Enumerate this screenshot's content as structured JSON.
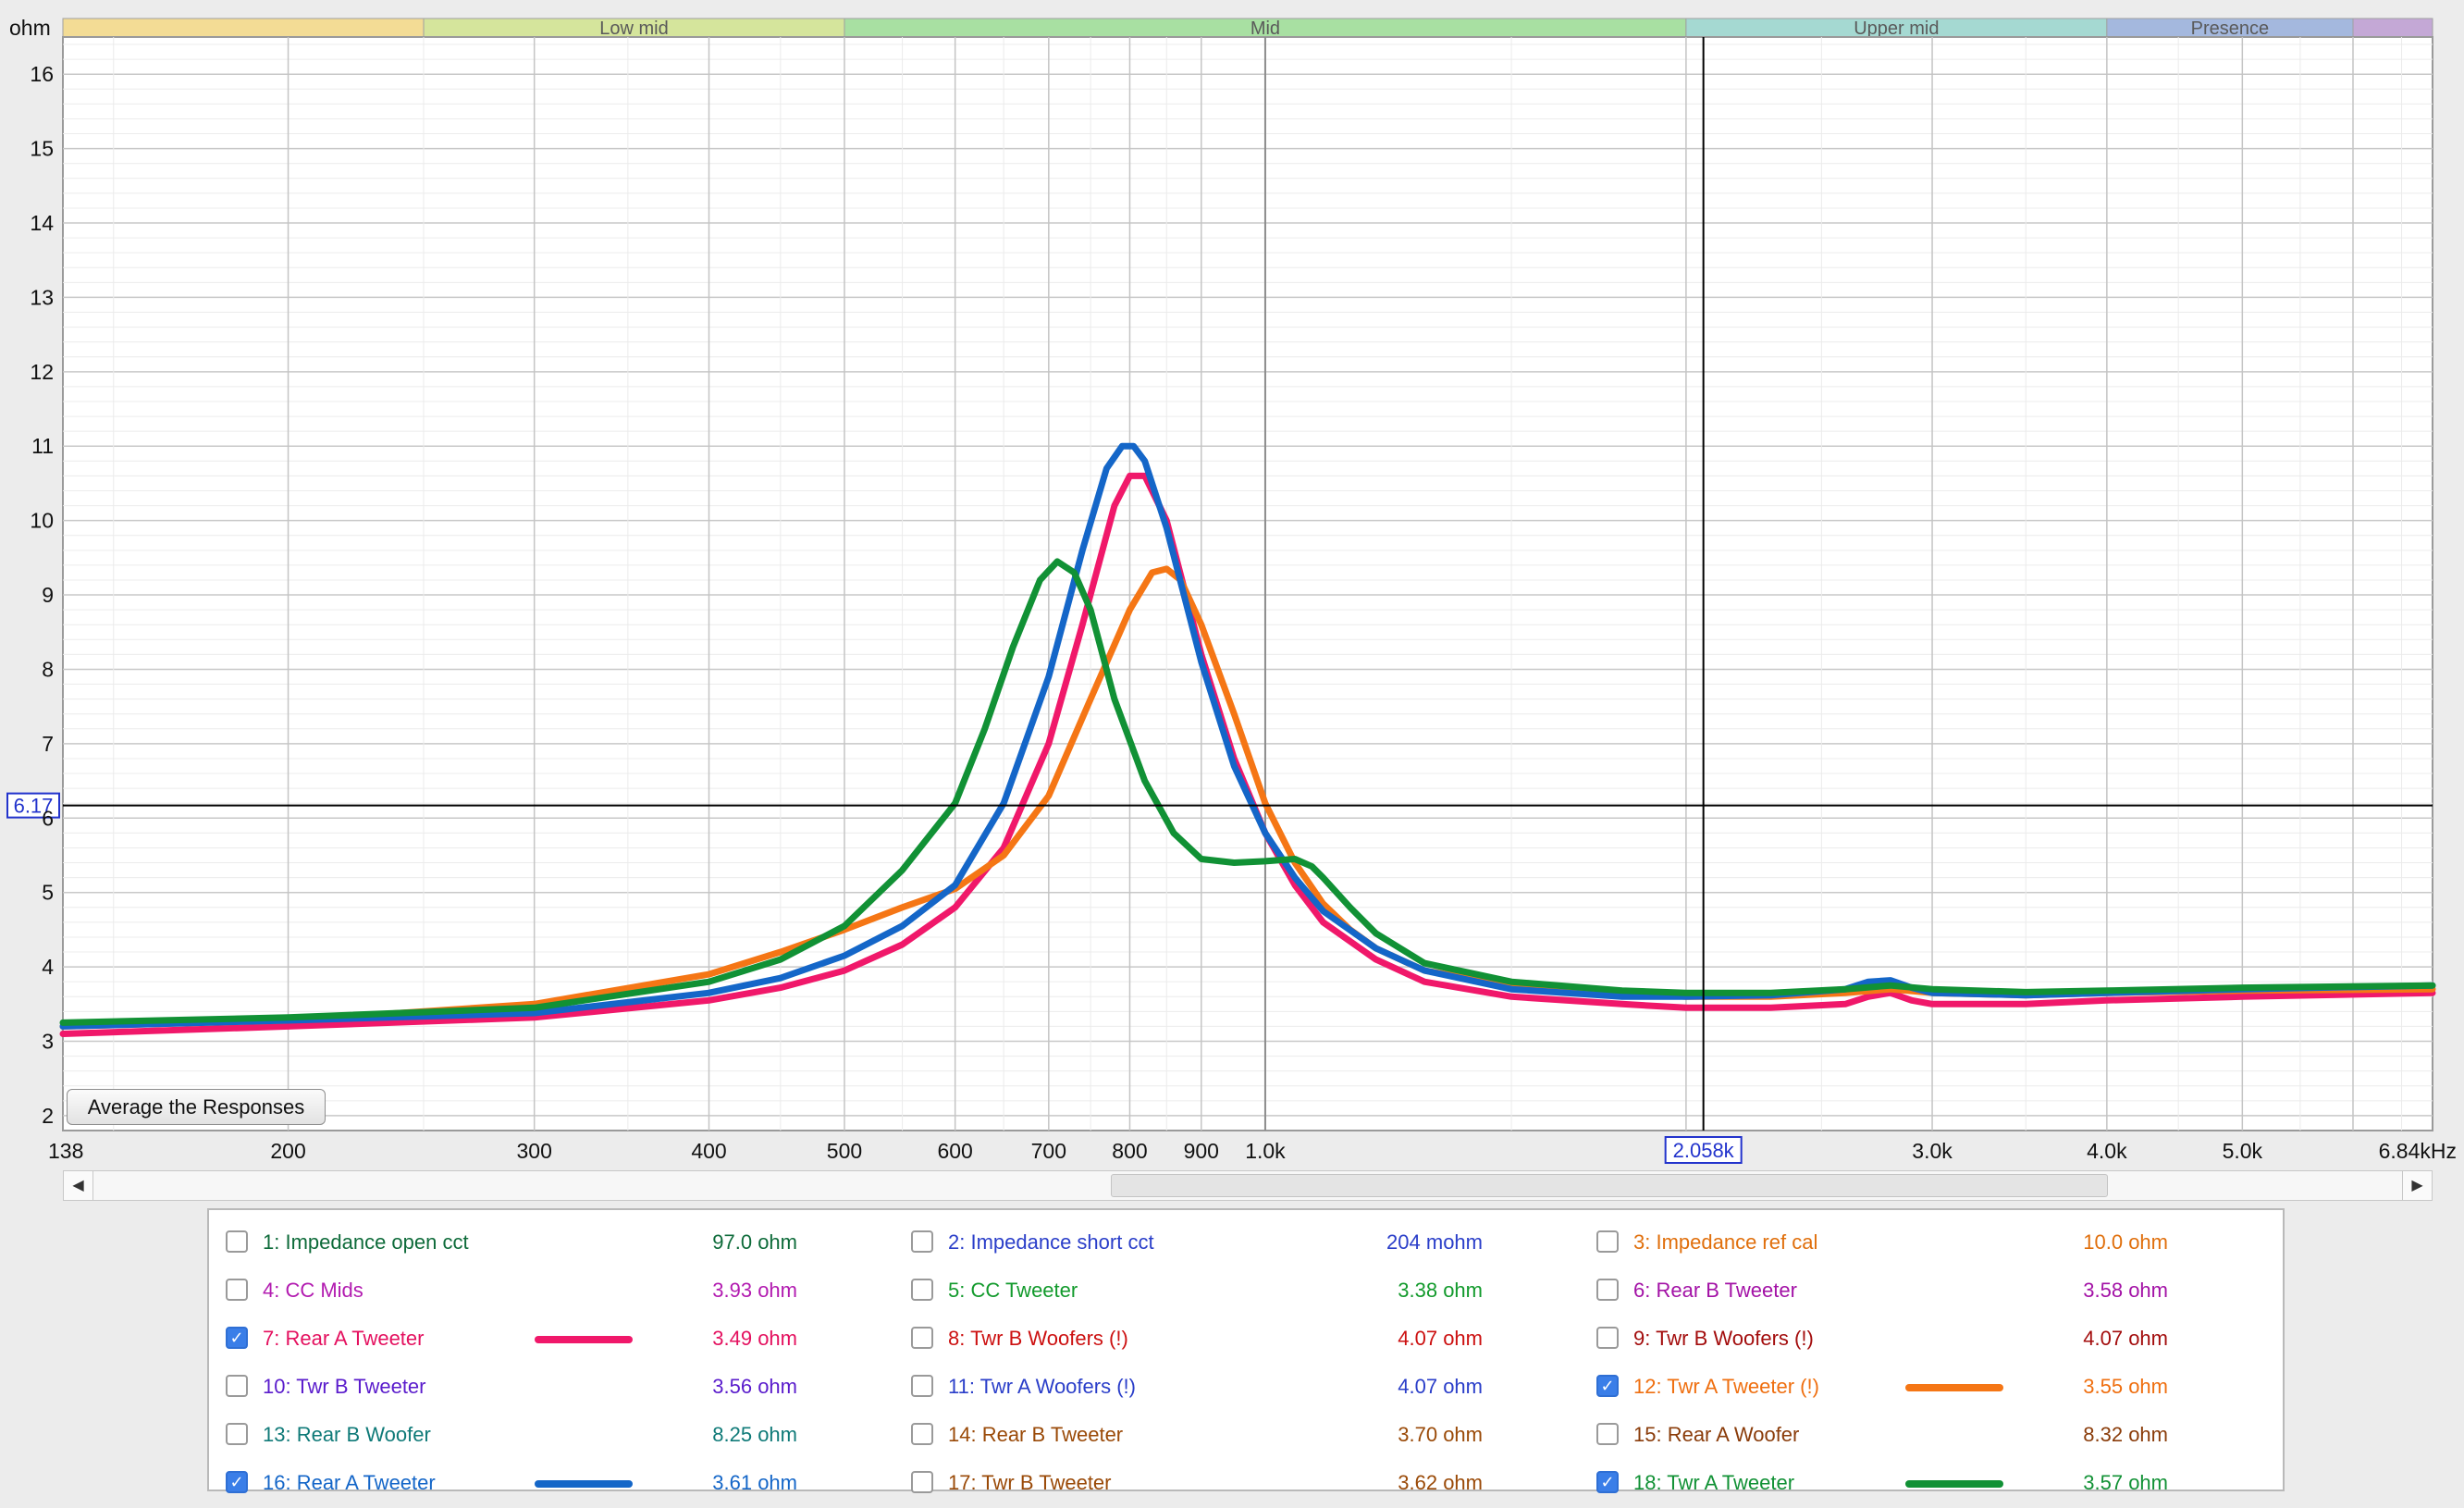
{
  "chart_data": {
    "type": "line",
    "y_unit": "ohm",
    "x_unit": "kHz",
    "xlim": [
      138,
      6840
    ],
    "ylim": [
      1.8,
      16.5
    ],
    "x_scale": "log",
    "grid": true,
    "y_ticks": [
      "2",
      "3",
      "4",
      "5",
      "6",
      "7",
      "8",
      "9",
      "10",
      "11",
      "12",
      "13",
      "14",
      "15",
      "16"
    ],
    "x_ticks": [
      {
        "v": 138,
        "label": "138"
      },
      {
        "v": 200,
        "label": "200"
      },
      {
        "v": 300,
        "label": "300"
      },
      {
        "v": 400,
        "label": "400"
      },
      {
        "v": 500,
        "label": "500"
      },
      {
        "v": 600,
        "label": "600"
      },
      {
        "v": 700,
        "label": "700"
      },
      {
        "v": 800,
        "label": "800"
      },
      {
        "v": 900,
        "label": "900"
      },
      {
        "v": 1000,
        "label": "1.0k"
      },
      {
        "v": 3000,
        "label": "3.0k"
      },
      {
        "v": 4000,
        "label": "4.0k"
      },
      {
        "v": 5000,
        "label": "5.0k"
      },
      {
        "v": 6840,
        "label": "6.84kHz"
      }
    ],
    "cursor": {
      "x": 2058,
      "x_label": "2.058k",
      "y": 6.17,
      "y_label": "6.17"
    },
    "bands": [
      {
        "label": "",
        "from": 138,
        "to": 250,
        "color": "#f3dc95"
      },
      {
        "label": "Low mid",
        "from": 250,
        "to": 500,
        "color": "#d5e59c"
      },
      {
        "label": "Mid",
        "from": 500,
        "to": 2000,
        "color": "#a8e0a2"
      },
      {
        "label": "Upper mid",
        "from": 2000,
        "to": 4000,
        "color": "#a5d9d2"
      },
      {
        "label": "Presence",
        "from": 4000,
        "to": 6000,
        "color": "#a4b8de"
      },
      {
        "label": "",
        "from": 6000,
        "to": 6840,
        "color": "#c4a8d6"
      }
    ],
    "series": [
      {
        "name": "7: Rear A Tweeter",
        "color": "#f0186a",
        "x": [
          138,
          200,
          300,
          400,
          450,
          500,
          550,
          600,
          650,
          700,
          740,
          780,
          800,
          820,
          850,
          900,
          950,
          1000,
          1050,
          1100,
          1200,
          1300,
          1500,
          1800,
          2000,
          2300,
          2600,
          2700,
          2800,
          2900,
          3000,
          3500,
          4000,
          5000,
          6840
        ],
        "y": [
          3.1,
          3.2,
          3.32,
          3.55,
          3.72,
          3.95,
          4.3,
          4.8,
          5.6,
          7.0,
          8.6,
          10.2,
          10.6,
          10.6,
          10.0,
          8.2,
          6.8,
          5.8,
          5.1,
          4.6,
          4.1,
          3.8,
          3.6,
          3.5,
          3.45,
          3.45,
          3.5,
          3.6,
          3.65,
          3.55,
          3.5,
          3.5,
          3.55,
          3.6,
          3.65
        ]
      },
      {
        "name": "12: Twr A Tweeter (!)",
        "color": "#f57615",
        "x": [
          138,
          200,
          300,
          400,
          450,
          500,
          550,
          600,
          650,
          700,
          750,
          800,
          830,
          850,
          870,
          900,
          950,
          1000,
          1050,
          1100,
          1150,
          1200,
          1300,
          1500,
          1800,
          2000,
          2300,
          2600,
          2800,
          3000,
          3500,
          4000,
          5000,
          6840
        ],
        "y": [
          3.2,
          3.28,
          3.5,
          3.9,
          4.2,
          4.5,
          4.8,
          5.05,
          5.5,
          6.3,
          7.6,
          8.8,
          9.3,
          9.35,
          9.2,
          8.6,
          7.4,
          6.2,
          5.4,
          4.85,
          4.5,
          4.25,
          3.95,
          3.75,
          3.65,
          3.6,
          3.6,
          3.65,
          3.7,
          3.65,
          3.62,
          3.65,
          3.68,
          3.7
        ]
      },
      {
        "name": "16: Rear A Tweeter",
        "color": "#1466c8",
        "x": [
          138,
          200,
          300,
          400,
          450,
          500,
          550,
          600,
          650,
          700,
          740,
          770,
          790,
          805,
          820,
          850,
          900,
          950,
          1000,
          1050,
          1100,
          1200,
          1300,
          1500,
          1800,
          2000,
          2300,
          2600,
          2700,
          2800,
          2900,
          3000,
          3500,
          4000,
          5000,
          6840
        ],
        "y": [
          3.2,
          3.28,
          3.38,
          3.65,
          3.85,
          4.15,
          4.55,
          5.1,
          6.2,
          7.9,
          9.6,
          10.7,
          11.0,
          11.0,
          10.8,
          9.9,
          8.1,
          6.7,
          5.8,
          5.2,
          4.75,
          4.25,
          3.95,
          3.7,
          3.6,
          3.6,
          3.62,
          3.7,
          3.8,
          3.82,
          3.72,
          3.65,
          3.62,
          3.65,
          3.7,
          3.75
        ]
      },
      {
        "name": "18: Twr A Tweeter",
        "color": "#119135",
        "x": [
          138,
          200,
          300,
          400,
          450,
          500,
          550,
          600,
          630,
          660,
          690,
          710,
          730,
          750,
          780,
          820,
          860,
          900,
          950,
          1000,
          1050,
          1080,
          1100,
          1150,
          1200,
          1300,
          1500,
          1800,
          2000,
          2300,
          2600,
          2800,
          3000,
          3500,
          4000,
          5000,
          6840
        ],
        "y": [
          3.25,
          3.32,
          3.45,
          3.8,
          4.1,
          4.55,
          5.3,
          6.2,
          7.2,
          8.3,
          9.2,
          9.45,
          9.3,
          8.8,
          7.6,
          6.5,
          5.8,
          5.45,
          5.4,
          5.42,
          5.45,
          5.35,
          5.2,
          4.8,
          4.45,
          4.05,
          3.8,
          3.68,
          3.65,
          3.65,
          3.7,
          3.75,
          3.7,
          3.66,
          3.68,
          3.72,
          3.75
        ]
      }
    ]
  },
  "buttons": {
    "average": "Average the Responses"
  },
  "legend": [
    {
      "name": "1: Impedance open cct",
      "value": "97.0 ohm",
      "color": "#0e6b3a",
      "checked": false
    },
    {
      "name": "2: Impedance short cct",
      "value": "204 mohm",
      "color": "#2a3ec9",
      "checked": false
    },
    {
      "name": "3: Impedance ref cal",
      "value": "10.0 ohm",
      "color": "#e06f0c",
      "checked": false
    },
    {
      "name": "4: CC Mids",
      "value": "3.93 ohm",
      "color": "#b21bb0",
      "checked": false
    },
    {
      "name": "5: CC Tweeter",
      "value": "3.38 ohm",
      "color": "#129a2c",
      "checked": false
    },
    {
      "name": "6: Rear B Tweeter",
      "value": "3.58 ohm",
      "color": "#a312a6",
      "checked": false
    },
    {
      "name": "7: Rear A Tweeter",
      "value": "3.49 ohm",
      "color": "#e4115f",
      "checked": true
    },
    {
      "name": "8: Twr B Woofers (!)",
      "value": "4.07 ohm",
      "color": "#cc1010",
      "checked": false
    },
    {
      "name": "9: Twr B Woofers (!)",
      "value": "4.07 ohm",
      "color": "#a30d0d",
      "checked": false
    },
    {
      "name": "10: Twr B Tweeter",
      "value": "3.56 ohm",
      "color": "#5a1ccc",
      "checked": false
    },
    {
      "name": "11: Twr A Woofers (!)",
      "value": "4.07 ohm",
      "color": "#2a3ec9",
      "checked": false
    },
    {
      "name": "12: Twr A Tweeter (!)",
      "value": "3.55 ohm",
      "color": "#ef6f10",
      "checked": true
    },
    {
      "name": "13: Rear B Woofer",
      "value": "8.25 ohm",
      "color": "#0f7a78",
      "checked": false
    },
    {
      "name": "14: Rear B Tweeter",
      "value": "3.70 ohm",
      "color": "#9a4a08",
      "checked": false
    },
    {
      "name": "15: Rear A Woofer",
      "value": "8.32 ohm",
      "color": "#8a3c0a",
      "checked": false
    },
    {
      "name": "16: Rear A Tweeter",
      "value": "3.61 ohm",
      "color": "#1466c8",
      "checked": true
    },
    {
      "name": "17: Twr B Tweeter",
      "value": "3.62 ohm",
      "color": "#9a4a08",
      "checked": false
    },
    {
      "name": "18: Twr A Tweeter",
      "value": "3.57 ohm",
      "color": "#119135",
      "checked": true
    }
  ],
  "scrollbar": {
    "left_arrow": "◀",
    "right_arrow": "▶"
  }
}
